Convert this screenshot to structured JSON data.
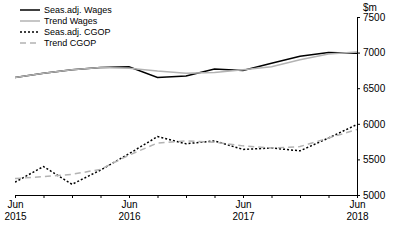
{
  "chart_data": {
    "type": "line",
    "y_label": "$m",
    "categories": [
      "Jun 2015",
      null,
      null,
      null,
      "Jun 2016",
      null,
      null,
      null,
      "Jun 2017",
      null,
      null,
      null,
      "Jun 2018"
    ],
    "series": [
      {
        "name": "Seas.adj. Wages",
        "color": "#000000",
        "line_style": "solid",
        "values": [
          6650,
          6710,
          6760,
          6790,
          6800,
          6650,
          6670,
          6770,
          6750,
          6850,
          6950,
          7000,
          6990
        ]
      },
      {
        "name": "Trend Wages",
        "color": "#b3b3b3",
        "line_style": "solid",
        "values": [
          6650,
          6710,
          6760,
          6790,
          6780,
          6740,
          6710,
          6720,
          6760,
          6800,
          6900,
          6980,
          7010
        ]
      },
      {
        "name": "Seas.adj. CGOP",
        "color": "#000000",
        "line_style": "dotted",
        "values": [
          5180,
          5400,
          5150,
          5350,
          5580,
          5820,
          5720,
          5760,
          5640,
          5660,
          5620,
          5800,
          5990
        ]
      },
      {
        "name": "Trend CGOP",
        "color": "#b3b3b3",
        "line_style": "dashed",
        "values": [
          5230,
          5260,
          5290,
          5360,
          5560,
          5730,
          5760,
          5740,
          5690,
          5660,
          5680,
          5800,
          5920
        ]
      }
    ],
    "ylim": [
      5000,
      7500
    ],
    "yticks": [
      5000,
      5500,
      6000,
      6500,
      7000,
      7500
    ],
    "grid": false,
    "legend": "top-left"
  }
}
